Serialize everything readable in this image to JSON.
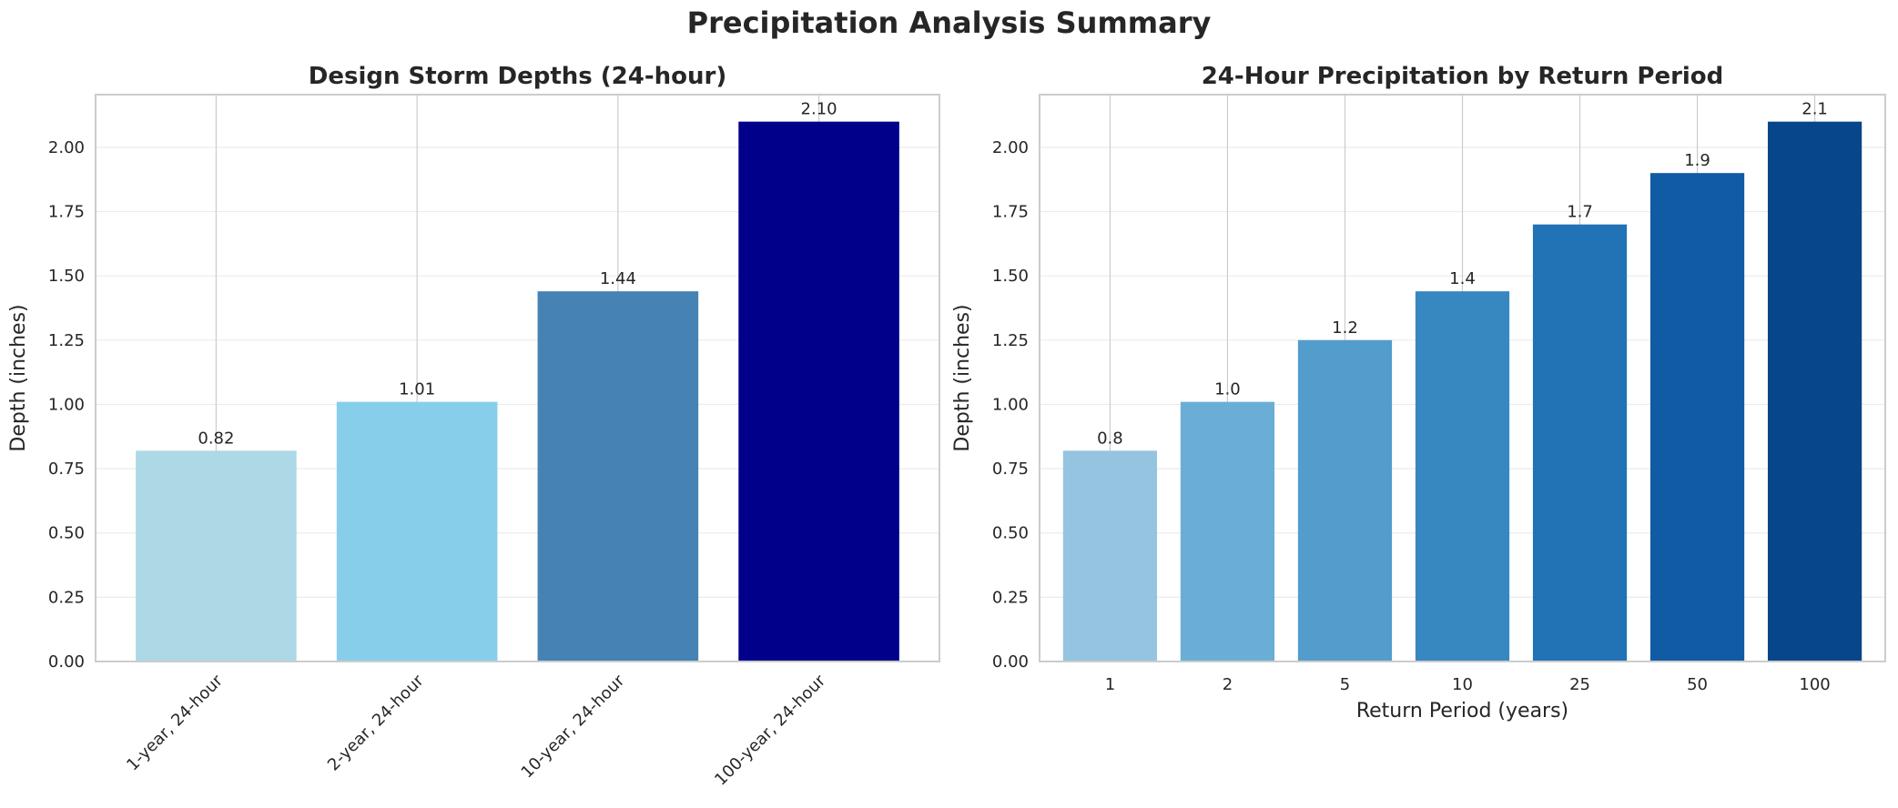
{
  "title": "Precipitation Analysis Summary",
  "chart_data": [
    {
      "type": "bar",
      "title": "Design Storm Depths (24-hour)",
      "xlabel": "",
      "ylabel": "Depth (inches)",
      "ylim": [
        0,
        2.205
      ],
      "yticks": [
        "0.00",
        "0.25",
        "0.50",
        "0.75",
        "1.00",
        "1.25",
        "1.50",
        "1.75",
        "2.00"
      ],
      "categories": [
        "1-year, 24-hour",
        "2-year, 24-hour",
        "10-year, 24-hour",
        "100-year, 24-hour"
      ],
      "values": [
        0.82,
        1.01,
        1.44,
        2.1
      ],
      "data_labels": [
        "0.82",
        "1.01",
        "1.44",
        "2.10"
      ],
      "colors": [
        "#add8e6",
        "#87ceeb",
        "#4682b4",
        "#00008b"
      ],
      "grid": true
    },
    {
      "type": "bar",
      "title": "24-Hour Precipitation by Return Period",
      "xlabel": "Return Period (years)",
      "ylabel": "Depth (inches)",
      "ylim": [
        0,
        2.205
      ],
      "yticks": [
        "0.00",
        "0.25",
        "0.50",
        "0.75",
        "1.00",
        "1.25",
        "1.50",
        "1.75",
        "2.00"
      ],
      "categories": [
        "1",
        "2",
        "5",
        "10",
        "25",
        "50",
        "100"
      ],
      "values": [
        0.82,
        1.01,
        1.25,
        1.44,
        1.7,
        1.9,
        2.1
      ],
      "data_labels": [
        "0.8",
        "1.0",
        "1.2",
        "1.4",
        "1.7",
        "1.9",
        "2.1"
      ],
      "colors": [
        "#94c4df",
        "#6aaed6",
        "#529dcc",
        "#3787c0",
        "#2272b6",
        "#105ba4",
        "#08468b"
      ],
      "grid": true
    }
  ]
}
